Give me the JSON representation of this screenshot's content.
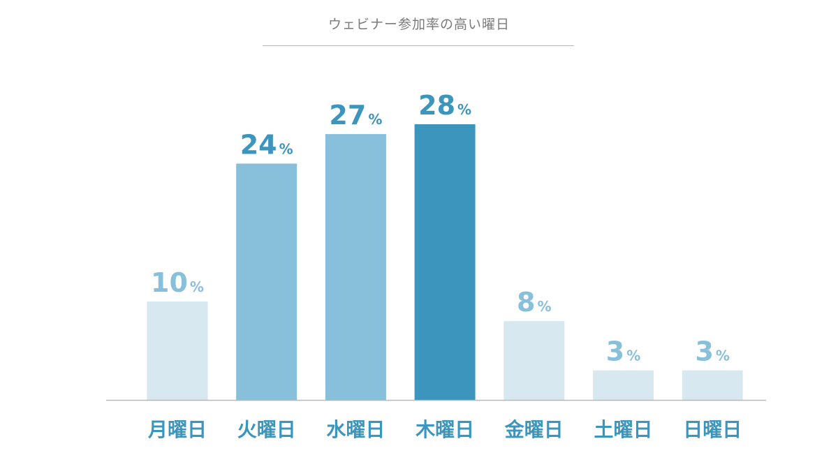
{
  "chart_data": {
    "type": "bar",
    "title": "ウェビナー参加率の高い曜日",
    "categories": [
      "月曜日",
      "火曜日",
      "水曜日",
      "木曜日",
      "金曜日",
      "土曜日",
      "日曜日"
    ],
    "values": [
      10,
      24,
      27,
      28,
      8,
      3,
      3
    ],
    "value_unit": "%",
    "ylim": [
      0,
      30
    ],
    "grid": false,
    "legend": "none",
    "bar_colors": [
      "#d8e8f1",
      "#88bfda",
      "#88bfda",
      "#3c95bc",
      "#d8e8f1",
      "#d8e8f1",
      "#d8e8f1"
    ],
    "value_label_colors": [
      "#88bfda",
      "#3c95bc",
      "#3c95bc",
      "#3c95bc",
      "#88bfda",
      "#88bfda",
      "#88bfda"
    ],
    "category_label_color": "#3c95bc",
    "axis_color": "#b8b8b8"
  }
}
